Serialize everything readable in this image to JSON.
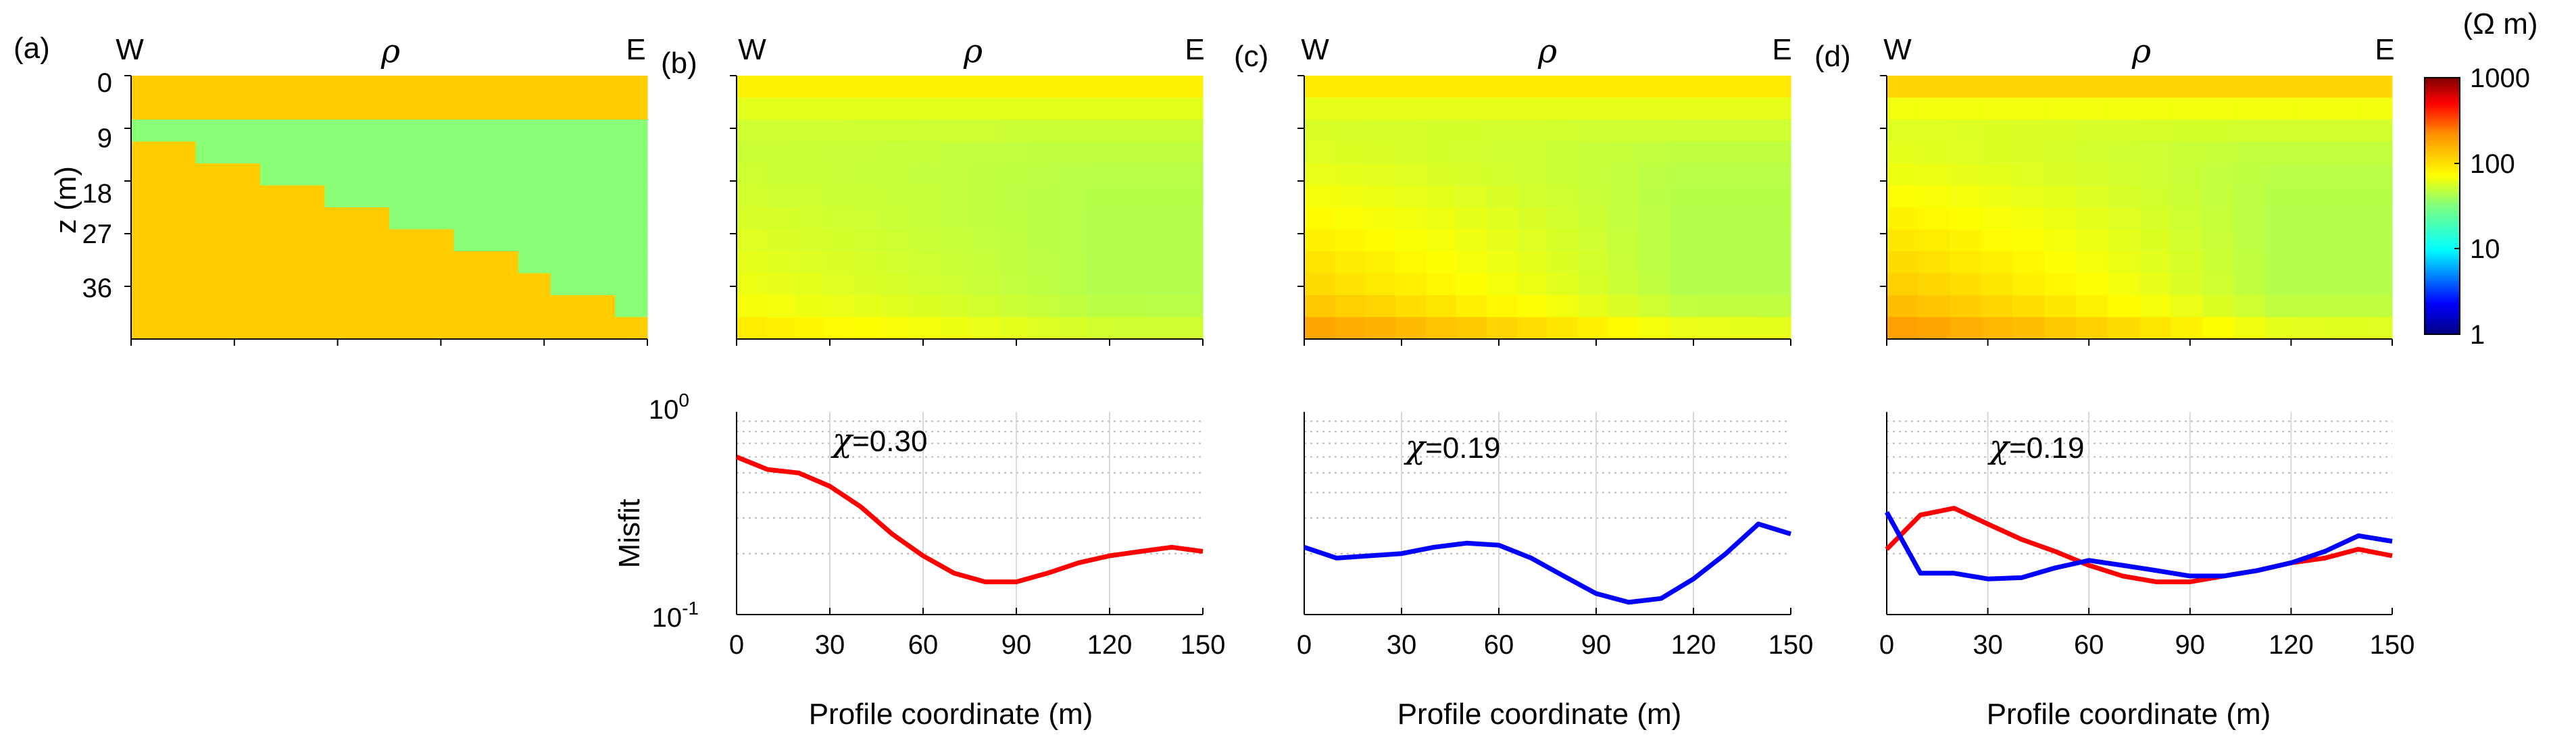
{
  "panel_labels": [
    "(a)",
    "(b)",
    "(c)",
    "(d)"
  ],
  "orientation": {
    "west": "W",
    "east": "E"
  },
  "property_symbol": "ρ",
  "colorbar": {
    "unit": "(Ω m)",
    "ticks": [
      "1000",
      "100",
      "10",
      "1"
    ],
    "scale": "log",
    "range": [
      1,
      1000
    ],
    "colormap": "jet",
    "stops": [
      "#00007f",
      "#0000ff",
      "#00ffff",
      "#7fff7f",
      "#ffff00",
      "#ff7f00",
      "#ff0000",
      "#7f0000"
    ]
  },
  "depth_axis": {
    "label": "z (m)",
    "ticks": [
      "0",
      "9",
      "18",
      "27",
      "36"
    ]
  },
  "misfit_axis": {
    "label": "Misfit",
    "tick_top": "10",
    "tick_top_exp": "0",
    "tick_bottom": "10",
    "tick_bottom_exp": "-1"
  },
  "profile_axis": {
    "label": "Profile coordinate (m)",
    "ticks": [
      "0",
      "30",
      "60",
      "90",
      "120",
      "150"
    ]
  },
  "chart_data": [
    {
      "type": "heatmap",
      "panel": "(a)",
      "description_values": {
        "upper_layer_ohm_m": 100,
        "wedge_ohm_m": 40
      },
      "grid": {
        "rows": 12,
        "cols": 16,
        "x_range": [
          0,
          150
        ],
        "z_range": [
          0,
          45
        ]
      }
    },
    {
      "type": "heatmap",
      "panel": "(b)",
      "grid": {
        "rows": 12,
        "cols": 16,
        "x_range": [
          0,
          150
        ],
        "z_range": [
          0,
          45
        ]
      }
    },
    {
      "type": "heatmap",
      "panel": "(c)",
      "grid": {
        "rows": 12,
        "cols": 16,
        "x_range": [
          0,
          150
        ],
        "z_range": [
          0,
          45
        ]
      }
    },
    {
      "type": "heatmap",
      "panel": "(d)",
      "grid": {
        "rows": 12,
        "cols": 16,
        "x_range": [
          0,
          150
        ],
        "z_range": [
          0,
          45
        ]
      }
    },
    {
      "type": "line",
      "panel": "(b)",
      "annotation": "=0.30",
      "xlabel": "Profile coordinate (m)",
      "ylabel": "Misfit",
      "xlim": [
        0,
        150
      ],
      "ylim": [
        0.1,
        1
      ],
      "yscale": "log",
      "series": [
        {
          "color": "#ff0000",
          "x": [
            0,
            10,
            20,
            30,
            40,
            50,
            60,
            70,
            80,
            90,
            100,
            110,
            120,
            130,
            140,
            150
          ],
          "y": [
            0.6,
            0.52,
            0.5,
            0.43,
            0.34,
            0.25,
            0.195,
            0.16,
            0.145,
            0.145,
            0.16,
            0.18,
            0.195,
            0.205,
            0.215,
            0.205
          ]
        }
      ]
    },
    {
      "type": "line",
      "panel": "(c)",
      "annotation": "=0.19",
      "xlabel": "Profile coordinate (m)",
      "xlim": [
        0,
        150
      ],
      "ylim": [
        0.1,
        1
      ],
      "yscale": "log",
      "series": [
        {
          "color": "#0000ff",
          "x": [
            0,
            10,
            20,
            30,
            40,
            50,
            60,
            70,
            80,
            90,
            100,
            110,
            120,
            130,
            140,
            150
          ],
          "y": [
            0.215,
            0.19,
            0.195,
            0.2,
            0.215,
            0.225,
            0.22,
            0.19,
            0.155,
            0.127,
            0.115,
            0.12,
            0.15,
            0.2,
            0.28,
            0.25
          ]
        }
      ]
    },
    {
      "type": "line",
      "panel": "(d)",
      "annotation": "=0.19",
      "xlabel": "Profile coordinate (m)",
      "xlim": [
        0,
        150
      ],
      "ylim": [
        0.1,
        1
      ],
      "yscale": "log",
      "series": [
        {
          "color": "#ff0000",
          "x": [
            0,
            10,
            20,
            30,
            40,
            50,
            60,
            70,
            80,
            90,
            100,
            110,
            120,
            130,
            140,
            150
          ],
          "y": [
            0.21,
            0.31,
            0.335,
            0.28,
            0.235,
            0.205,
            0.175,
            0.155,
            0.145,
            0.145,
            0.155,
            0.165,
            0.18,
            0.19,
            0.21,
            0.195
          ]
        },
        {
          "color": "#0000ff",
          "x": [
            0,
            10,
            20,
            30,
            40,
            50,
            60,
            70,
            80,
            90,
            100,
            110,
            120,
            130,
            140,
            150
          ],
          "y": [
            0.32,
            0.16,
            0.16,
            0.15,
            0.152,
            0.17,
            0.185,
            0.175,
            0.165,
            0.155,
            0.155,
            0.165,
            0.18,
            0.205,
            0.245,
            0.23
          ]
        }
      ]
    }
  ]
}
